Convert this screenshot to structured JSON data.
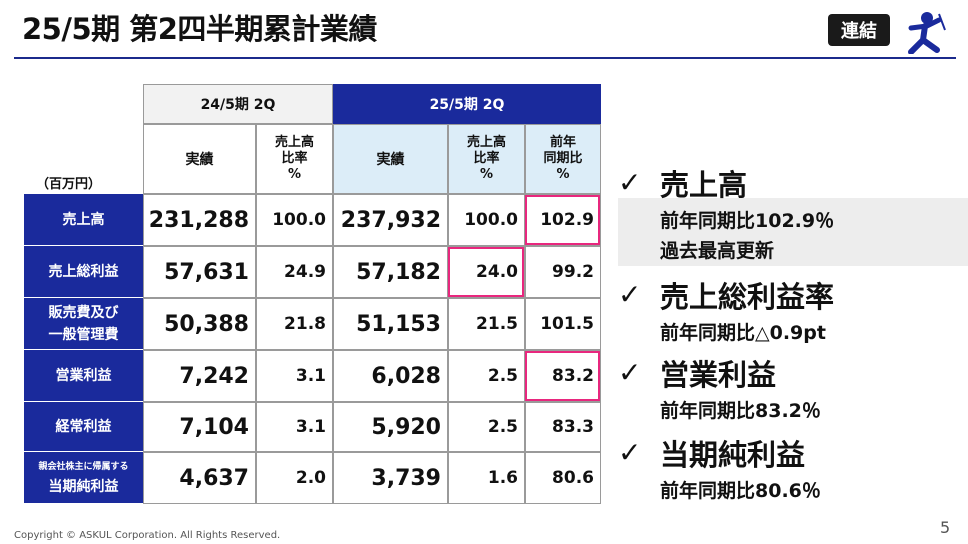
{
  "title": "25/5期 第2四半期累計業績",
  "badge": "連結",
  "unit": "（百万円）",
  "table": {
    "prev_period": "24/5期 2Q",
    "cur_period": "25/5期 2Q",
    "col_actual": "実績",
    "col_ratio": [
      "売上高",
      "比率",
      "%"
    ],
    "col_yoy": [
      "前年",
      "同期比",
      "%"
    ],
    "rows": [
      {
        "label": [
          "売上高"
        ],
        "prev": "231,288",
        "prev_ratio": "100.0",
        "cur": "237,932",
        "cur_ratio": "100.0",
        "yoy": "102.9"
      },
      {
        "label": [
          "売上総利益"
        ],
        "prev": "57,631",
        "prev_ratio": "24.9",
        "cur": "57,182",
        "cur_ratio": "24.0",
        "yoy": "99.2"
      },
      {
        "label": [
          "販売費及び",
          "一般管理費"
        ],
        "prev": "50,388",
        "prev_ratio": "21.8",
        "cur": "51,153",
        "cur_ratio": "21.5",
        "yoy": "101.5"
      },
      {
        "label": [
          "営業利益"
        ],
        "prev": "7,242",
        "prev_ratio": "3.1",
        "cur": "6,028",
        "cur_ratio": "2.5",
        "yoy": "83.2"
      },
      {
        "label": [
          "経常利益"
        ],
        "prev": "7,104",
        "prev_ratio": "3.1",
        "cur": "5,920",
        "cur_ratio": "2.5",
        "yoy": "83.3"
      },
      {
        "label": [
          "親会社株主に帰属する",
          "当期純利益"
        ],
        "prev": "4,637",
        "prev_ratio": "2.0",
        "cur": "3,739",
        "cur_ratio": "1.6",
        "yoy": "80.6"
      }
    ]
  },
  "bullets": [
    {
      "check": "✓",
      "head": "売上高",
      "lines": [
        "前年同期比102.9％",
        "過去最高更新"
      ]
    },
    {
      "check": "✓",
      "head": "売上総利益率",
      "lines": [
        "前年同期比△0.9pt"
      ]
    },
    {
      "check": "✓",
      "head": "営業利益",
      "lines": [
        "前年同期比83.2％"
      ]
    },
    {
      "check": "✓",
      "head": "当期純利益",
      "lines": [
        "前年同期比80.6％"
      ]
    }
  ],
  "footer": "Copyright © ASKUL Corporation. All Rights Reserved.",
  "page_number": "5",
  "colors": {
    "navy": "#1a2a9c",
    "highlight": "#e8277e",
    "light_blue": "#dcedf8"
  }
}
